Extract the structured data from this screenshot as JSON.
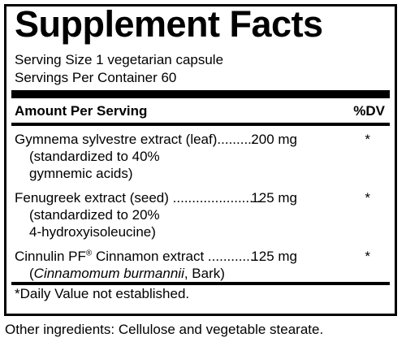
{
  "label": {
    "title": "Supplement Facts",
    "serving_size": "Serving Size 1 vegetarian capsule",
    "servings_per_container": "Servings Per Container 60",
    "amount_header": "Amount Per Serving",
    "dv_header": "%DV",
    "ingredients": [
      {
        "name": "Gymnema sylvestre extract (leaf)..........",
        "amount": "200 mg",
        "dv": "*",
        "notes": [
          "(standardized to 40%",
          "gymnemic acids)"
        ]
      },
      {
        "name": "Fenugreek extract (seed) .......................",
        "amount": "125 mg",
        "dv": "*",
        "notes": [
          "(standardized to 20%",
          "4-hydroxyisoleucine)"
        ]
      },
      {
        "name_main": "Cinnulin PF",
        "name_reg": "®",
        "name_rest": " Cinnamon extract .............",
        "amount": "125 mg",
        "dv": "*",
        "note_italic": "Cinnamomum burmannii",
        "note_rest": ", Bark)"
      }
    ],
    "footnote": "*Daily Value not established."
  },
  "other_ingredients": "Other ingredients: Cellulose and vegetable stearate."
}
